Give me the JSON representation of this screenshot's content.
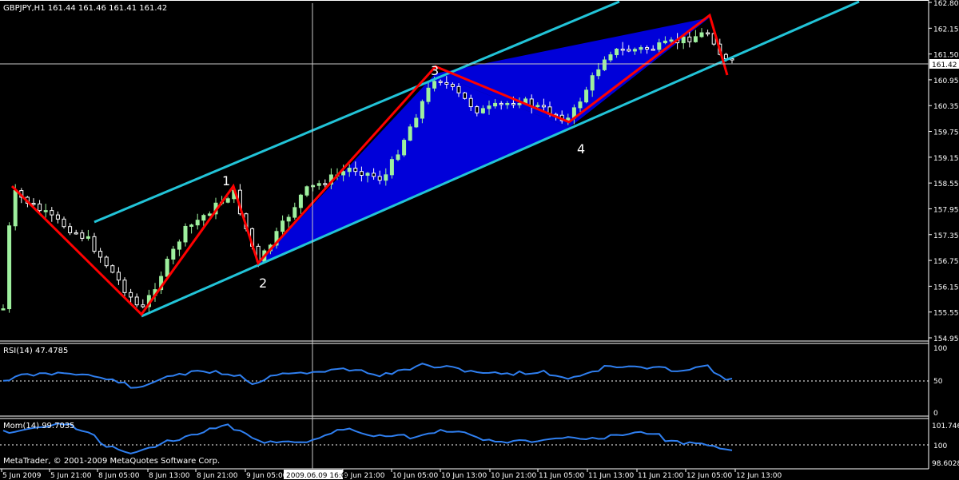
{
  "colors": {
    "background": "#000000",
    "grid": "#ffffff",
    "text": "#ffffff",
    "bull": "#9ef09e",
    "bear": "#ffffff",
    "channel": "#22c4d8",
    "zigzag": "#ff0000",
    "pattern_fill": "#0000ff",
    "rsi_line": "#2f7ff0",
    "mom_line": "#2f7ff0",
    "crosshair": "#c8c8c8"
  },
  "main": {
    "header": "GBPJPY,H1  161.44 161.46 161.41 161.42",
    "price_labels": [
      "162.80",
      "162.15",
      "161.50",
      "160.95",
      "160.35",
      "159.75",
      "159.15",
      "158.55",
      "157.95",
      "157.35",
      "156.75",
      "156.15",
      "155.55",
      "154.95"
    ],
    "current_price": "161.42",
    "wave_labels": [
      "1",
      "2",
      "3",
      "4"
    ]
  },
  "rsi": {
    "header": "RSI(14) 47.4785",
    "levels": [
      "100",
      "50",
      "0"
    ]
  },
  "mom": {
    "header": "Mom(14) 99.7035",
    "levels": [
      "101.746",
      "100",
      "98.6028"
    ]
  },
  "footer": {
    "copyright": "MetaTrader, © 2001-2009 MetaQuotes Software Corp.",
    "crosshair_time": "2009.06.09 16:00"
  },
  "x_labels": [
    "5 Jun 2009",
    "5 Jun 21:00",
    "8 Jun 05:00",
    "8 Jun 13:00",
    "8 Jun 21:00",
    "9 Jun 05:00",
    "9 Jun 21:00",
    "10 Jun 05:00",
    "10 Jun 13:00",
    "10 Jun 21:00",
    "11 Jun 05:00",
    "11 Jun 13:00",
    "11 Jun 21:00",
    "12 Jun 05:00",
    "12 Jun 13:00"
  ],
  "chart_data": {
    "type": "candlestick",
    "symbol": "GBPJPY",
    "timeframe": "H1",
    "ylim": [
      154.95,
      162.8
    ],
    "zigzag": [
      {
        "label": "",
        "time": "5 Jun 2009",
        "price": 158.5
      },
      {
        "label": "",
        "time": "8 Jun 05:00",
        "price": 155.5
      },
      {
        "label": "1",
        "time": "8 Jun 21:00",
        "price": 158.5
      },
      {
        "label": "2",
        "time": "9 Jun 05:00",
        "price": 156.7
      },
      {
        "label": "3",
        "time": "10 Jun 13:00",
        "price": 161.3
      },
      {
        "label": "4",
        "time": "11 Jun 05:00",
        "price": 160.0
      },
      {
        "label": "",
        "time": "12 Jun 05:00",
        "price": 162.5
      },
      {
        "label": "",
        "time": "12 Jun 13:00",
        "price": 161.1
      }
    ],
    "rsi_14": {
      "value": 47.4785,
      "range": [
        0,
        100
      ],
      "level": 50
    },
    "momentum_14": {
      "value": 99.7035,
      "range": [
        98.6028,
        101.746
      ],
      "level": 100
    }
  }
}
